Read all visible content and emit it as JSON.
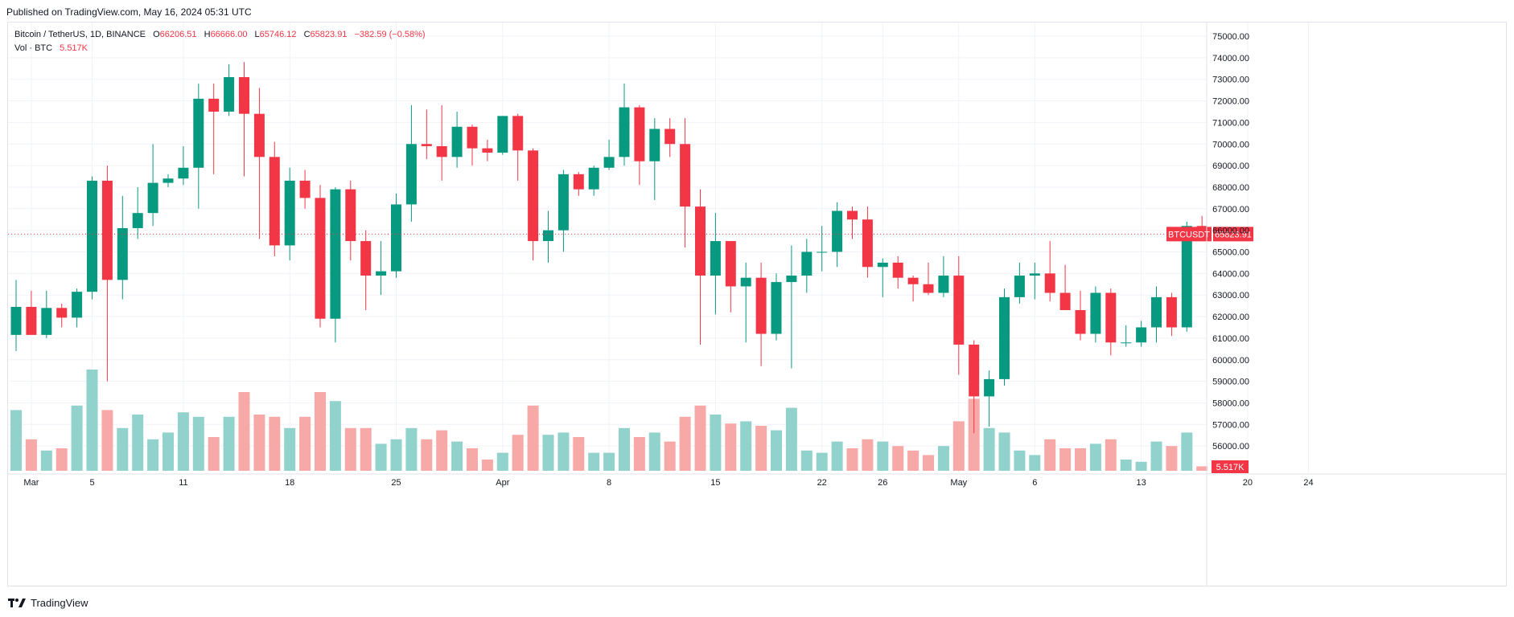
{
  "header": {
    "published": "Published on TradingView.com, May 16, 2024 05:31 UTC"
  },
  "legend": {
    "title": "Bitcoin / TetherUS, 1D, BINANCE",
    "o_label": "O",
    "o_value": "66206.51",
    "h_label": "H",
    "h_value": "66666.00",
    "l_label": "L",
    "l_value": "65746.12",
    "c_label": "C",
    "c_value": "65823.91",
    "change": "−382.59 (−0.58%)",
    "vol_title": "Vol · BTC",
    "vol_value": "5.517K"
  },
  "footer": {
    "brand": "TradingView"
  },
  "colors": {
    "up": "#089981",
    "down": "#f23645",
    "vol_up": "#92d2cc",
    "vol_down": "#f7a9a7",
    "grid": "#f0f3fa"
  },
  "chart_data": {
    "type": "candlestick",
    "symbol": "BTCUSDT",
    "last_price_label": "65823.91",
    "volume_label": "5.517K",
    "y_ticks": [
      "75000.00",
      "74000.00",
      "73000.00",
      "72000.00",
      "71000.00",
      "70000.00",
      "69000.00",
      "68000.00",
      "67000.00",
      "66000.00",
      "65000.00",
      "64000.00",
      "63000.00",
      "62000.00",
      "61000.00",
      "60000.00",
      "59000.00",
      "58000.00",
      "57000.00",
      "56000.00"
    ],
    "ylim": [
      55200,
      75500
    ],
    "x_ticks": [
      {
        "label": "Mar",
        "day": 1
      },
      {
        "label": "5",
        "day": 5
      },
      {
        "label": "11",
        "day": 11
      },
      {
        "label": "18",
        "day": 18
      },
      {
        "label": "25",
        "day": 25
      },
      {
        "label": "Apr",
        "day": 32
      },
      {
        "label": "8",
        "day": 39
      },
      {
        "label": "15",
        "day": 46
      },
      {
        "label": "22",
        "day": 53
      },
      {
        "label": "26",
        "day": 57
      },
      {
        "label": "May",
        "day": 62
      },
      {
        "label": "6",
        "day": 67
      },
      {
        "label": "13",
        "day": 74
      },
      {
        "label": "20",
        "day": 81
      },
      {
        "label": "24",
        "day": 85
      }
    ],
    "note_day": "days counted from Feb 29 = 0",
    "candles": [
      {
        "d": 0,
        "o": 61150,
        "h": 63700,
        "l": 60400,
        "c": 62450,
        "v": 2.7
      },
      {
        "d": 1,
        "o": 62450,
        "h": 63200,
        "l": 61300,
        "c": 61150,
        "v": 1.4
      },
      {
        "d": 2,
        "o": 61150,
        "h": 63200,
        "l": 61000,
        "c": 62400,
        "v": 0.9
      },
      {
        "d": 3,
        "o": 62400,
        "h": 62600,
        "l": 61500,
        "c": 61950,
        "v": 1.0
      },
      {
        "d": 4,
        "o": 61950,
        "h": 63300,
        "l": 61500,
        "c": 63150,
        "v": 2.9
      },
      {
        "d": 5,
        "o": 63150,
        "h": 68500,
        "l": 62800,
        "c": 68300,
        "v": 4.5
      },
      {
        "d": 6,
        "o": 68300,
        "h": 69000,
        "l": 59000,
        "c": 63700,
        "v": 2.7
      },
      {
        "d": 7,
        "o": 63700,
        "h": 67600,
        "l": 62800,
        "c": 66100,
        "v": 1.9
      },
      {
        "d": 8,
        "o": 66100,
        "h": 68000,
        "l": 65600,
        "c": 66800,
        "v": 2.5
      },
      {
        "d": 9,
        "o": 66800,
        "h": 70000,
        "l": 66200,
        "c": 68200,
        "v": 1.4
      },
      {
        "d": 10,
        "o": 68200,
        "h": 68600,
        "l": 68000,
        "c": 68400,
        "v": 1.7
      },
      {
        "d": 11,
        "o": 68400,
        "h": 69900,
        "l": 68100,
        "c": 68900,
        "v": 2.6
      },
      {
        "d": 12,
        "o": 68900,
        "h": 72800,
        "l": 67000,
        "c": 72100,
        "v": 2.4
      },
      {
        "d": 13,
        "o": 72100,
        "h": 72800,
        "l": 68600,
        "c": 71500,
        "v": 1.5
      },
      {
        "d": 14,
        "o": 71500,
        "h": 73700,
        "l": 71300,
        "c": 73100,
        "v": 2.4
      },
      {
        "d": 15,
        "o": 73100,
        "h": 73800,
        "l": 68500,
        "c": 71400,
        "v": 3.5
      },
      {
        "d": 16,
        "o": 71400,
        "h": 72600,
        "l": 65600,
        "c": 69400,
        "v": 2.5
      },
      {
        "d": 17,
        "o": 69400,
        "h": 70100,
        "l": 64800,
        "c": 65300,
        "v": 2.4
      },
      {
        "d": 18,
        "o": 65300,
        "h": 68900,
        "l": 64600,
        "c": 68300,
        "v": 1.9
      },
      {
        "d": 19,
        "o": 68300,
        "h": 68800,
        "l": 67000,
        "c": 67500,
        "v": 2.4
      },
      {
        "d": 20,
        "o": 67500,
        "h": 68100,
        "l": 61500,
        "c": 61900,
        "v": 3.5
      },
      {
        "d": 21,
        "o": 61900,
        "h": 68000,
        "l": 60800,
        "c": 67900,
        "v": 3.1
      },
      {
        "d": 22,
        "o": 67900,
        "h": 68300,
        "l": 64600,
        "c": 65500,
        "v": 1.9
      },
      {
        "d": 23,
        "o": 65500,
        "h": 66000,
        "l": 62300,
        "c": 63900,
        "v": 1.9
      },
      {
        "d": 24,
        "o": 63900,
        "h": 65500,
        "l": 63000,
        "c": 64100,
        "v": 1.2
      },
      {
        "d": 25,
        "o": 64100,
        "h": 67700,
        "l": 63800,
        "c": 67200,
        "v": 1.4
      },
      {
        "d": 26,
        "o": 67200,
        "h": 71800,
        "l": 66400,
        "c": 70000,
        "v": 1.9
      },
      {
        "d": 27,
        "o": 70000,
        "h": 71600,
        "l": 69300,
        "c": 69900,
        "v": 1.4
      },
      {
        "d": 28,
        "o": 69900,
        "h": 71800,
        "l": 68300,
        "c": 69400,
        "v": 1.8
      },
      {
        "d": 29,
        "o": 69400,
        "h": 71500,
        "l": 68900,
        "c": 70800,
        "v": 1.3
      },
      {
        "d": 30,
        "o": 70800,
        "h": 70900,
        "l": 69000,
        "c": 69800,
        "v": 1.0
      },
      {
        "d": 31,
        "o": 69800,
        "h": 70200,
        "l": 69200,
        "c": 69600,
        "v": 0.5
      },
      {
        "d": 32,
        "o": 69600,
        "h": 71300,
        "l": 69500,
        "c": 71300,
        "v": 0.8
      },
      {
        "d": 33,
        "o": 71300,
        "h": 71400,
        "l": 68300,
        "c": 69700,
        "v": 1.6
      },
      {
        "d": 34,
        "o": 69700,
        "h": 69800,
        "l": 64600,
        "c": 65500,
        "v": 2.9
      },
      {
        "d": 35,
        "o": 65500,
        "h": 66900,
        "l": 64500,
        "c": 66000,
        "v": 1.6
      },
      {
        "d": 36,
        "o": 66000,
        "h": 68800,
        "l": 65000,
        "c": 68600,
        "v": 1.7
      },
      {
        "d": 37,
        "o": 68600,
        "h": 68700,
        "l": 67600,
        "c": 67900,
        "v": 1.5
      },
      {
        "d": 38,
        "o": 67900,
        "h": 69000,
        "l": 67600,
        "c": 68900,
        "v": 0.8
      },
      {
        "d": 39,
        "o": 68900,
        "h": 70200,
        "l": 68800,
        "c": 69400,
        "v": 0.8
      },
      {
        "d": 40,
        "o": 69400,
        "h": 72800,
        "l": 69000,
        "c": 71700,
        "v": 1.9
      },
      {
        "d": 41,
        "o": 71700,
        "h": 71800,
        "l": 68100,
        "c": 69200,
        "v": 1.5
      },
      {
        "d": 42,
        "o": 69200,
        "h": 71200,
        "l": 67400,
        "c": 70700,
        "v": 1.7
      },
      {
        "d": 43,
        "o": 70700,
        "h": 71200,
        "l": 69400,
        "c": 70000,
        "v": 1.3
      },
      {
        "d": 44,
        "o": 70000,
        "h": 71200,
        "l": 65200,
        "c": 67100,
        "v": 2.4
      },
      {
        "d": 45,
        "o": 67100,
        "h": 67900,
        "l": 60700,
        "c": 63900,
        "v": 2.9
      },
      {
        "d": 46,
        "o": 63900,
        "h": 66800,
        "l": 62100,
        "c": 65500,
        "v": 2.5
      },
      {
        "d": 47,
        "o": 65500,
        "h": 65500,
        "l": 62200,
        "c": 63400,
        "v": 2.1
      },
      {
        "d": 48,
        "o": 63400,
        "h": 64500,
        "l": 60800,
        "c": 63800,
        "v": 2.2
      },
      {
        "d": 49,
        "o": 63800,
        "h": 64500,
        "l": 59700,
        "c": 61200,
        "v": 2.0
      },
      {
        "d": 50,
        "o": 61200,
        "h": 64000,
        "l": 60900,
        "c": 63600,
        "v": 1.8
      },
      {
        "d": 51,
        "o": 63600,
        "h": 65300,
        "l": 59600,
        "c": 63900,
        "v": 2.8
      },
      {
        "d": 52,
        "o": 63900,
        "h": 65600,
        "l": 63100,
        "c": 65000,
        "v": 0.9
      },
      {
        "d": 53,
        "o": 65000,
        "h": 66200,
        "l": 64100,
        "c": 65000,
        "v": 0.8
      },
      {
        "d": 54,
        "o": 65000,
        "h": 67300,
        "l": 64300,
        "c": 66900,
        "v": 1.3
      },
      {
        "d": 55,
        "o": 66900,
        "h": 67100,
        "l": 65600,
        "c": 66500,
        "v": 1.0
      },
      {
        "d": 56,
        "o": 66500,
        "h": 67100,
        "l": 63800,
        "c": 64300,
        "v": 1.4
      },
      {
        "d": 57,
        "o": 64300,
        "h": 64700,
        "l": 62900,
        "c": 64500,
        "v": 1.3
      },
      {
        "d": 58,
        "o": 64500,
        "h": 64800,
        "l": 63300,
        "c": 63800,
        "v": 1.1
      },
      {
        "d": 59,
        "o": 63800,
        "h": 63900,
        "l": 62700,
        "c": 63500,
        "v": 0.9
      },
      {
        "d": 60,
        "o": 63500,
        "h": 64500,
        "l": 63000,
        "c": 63100,
        "v": 0.7
      },
      {
        "d": 61,
        "o": 63100,
        "h": 64800,
        "l": 62900,
        "c": 63900,
        "v": 1.1
      },
      {
        "d": 62,
        "o": 63900,
        "h": 64800,
        "l": 59300,
        "c": 60700,
        "v": 2.2
      },
      {
        "d": 63,
        "o": 60700,
        "h": 60900,
        "l": 56600,
        "c": 58300,
        "v": 3.2
      },
      {
        "d": 64,
        "o": 58300,
        "h": 59500,
        "l": 56900,
        "c": 59100,
        "v": 1.9
      },
      {
        "d": 65,
        "o": 59100,
        "h": 63300,
        "l": 58800,
        "c": 62900,
        "v": 1.7
      },
      {
        "d": 66,
        "o": 62900,
        "h": 64500,
        "l": 62600,
        "c": 63900,
        "v": 0.9
      },
      {
        "d": 67,
        "o": 63900,
        "h": 64500,
        "l": 62800,
        "c": 64000,
        "v": 0.7
      },
      {
        "d": 68,
        "o": 64000,
        "h": 65500,
        "l": 62700,
        "c": 63100,
        "v": 1.4
      },
      {
        "d": 69,
        "o": 63100,
        "h": 64400,
        "l": 62300,
        "c": 62300,
        "v": 1.0
      },
      {
        "d": 70,
        "o": 62300,
        "h": 63200,
        "l": 60900,
        "c": 61200,
        "v": 1.0
      },
      {
        "d": 71,
        "o": 61200,
        "h": 63400,
        "l": 60800,
        "c": 63100,
        "v": 1.2
      },
      {
        "d": 72,
        "o": 63100,
        "h": 63300,
        "l": 60200,
        "c": 60800,
        "v": 1.4
      },
      {
        "d": 73,
        "o": 60800,
        "h": 61600,
        "l": 60600,
        "c": 60800,
        "v": 0.5
      },
      {
        "d": 74,
        "o": 60800,
        "h": 61800,
        "l": 60600,
        "c": 61500,
        "v": 0.4
      },
      {
        "d": 75,
        "o": 61500,
        "h": 63400,
        "l": 60800,
        "c": 62900,
        "v": 1.3
      },
      {
        "d": 76,
        "o": 62900,
        "h": 63100,
        "l": 61100,
        "c": 61500,
        "v": 1.1
      },
      {
        "d": 77,
        "o": 61500,
        "h": 66400,
        "l": 61300,
        "c": 66200,
        "v": 1.7
      },
      {
        "d": 78,
        "o": 66200,
        "h": 66666,
        "l": 65746,
        "c": 65824,
        "v": 0.2
      }
    ]
  }
}
